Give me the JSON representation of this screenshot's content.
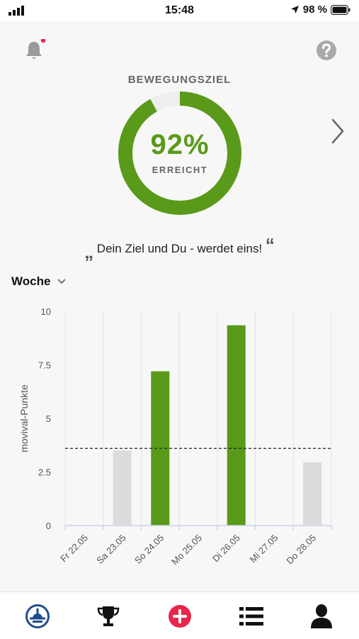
{
  "status_bar": {
    "time": "15:48",
    "battery": "98 %"
  },
  "goal": {
    "title": "BEWEGUNGSZIEL",
    "percent_label": "92%",
    "progress": 0.92,
    "status": "ERREICHT",
    "color": "#5a9a1a"
  },
  "quote": {
    "open_mark": "„",
    "text": "Dein Ziel und Du - werdet eins!",
    "close_mark": "“"
  },
  "period_selector": {
    "label": "Woche"
  },
  "chart_data": {
    "type": "bar",
    "ylabel": "movival-Punkte",
    "ylim": [
      0,
      10
    ],
    "yticks": [
      "10",
      "7.5",
      "5",
      "2.5",
      "0"
    ],
    "ytick_values": [
      10,
      7.5,
      5,
      2.5,
      0
    ],
    "categories": [
      "Fr 22.05",
      "Sa 23.05",
      "So 24.05",
      "Mo 25.05",
      "Di 26.05",
      "Mi 27.05",
      "Do 28.05"
    ],
    "values": [
      0,
      3.5,
      7.2,
      0,
      9.35,
      0,
      2.95
    ],
    "goal_reached": [
      false,
      false,
      true,
      false,
      true,
      false,
      false
    ],
    "target_line": 3.6,
    "colors": {
      "reached": "#5a9a1a",
      "not_reached": "#dcdcdc",
      "grid": "#e4e4e4",
      "axis": "#c8d4e8"
    }
  },
  "tabbar": {
    "items": [
      {
        "name": "dashboard",
        "icon": "gauge-icon",
        "active": true
      },
      {
        "name": "trophies",
        "icon": "trophy-icon"
      },
      {
        "name": "add",
        "icon": "plus-circle-icon"
      },
      {
        "name": "list",
        "icon": "list-icon"
      },
      {
        "name": "profile",
        "icon": "person-icon"
      }
    ],
    "active_color": "#1e4f8a",
    "add_color": "#e8264a"
  }
}
